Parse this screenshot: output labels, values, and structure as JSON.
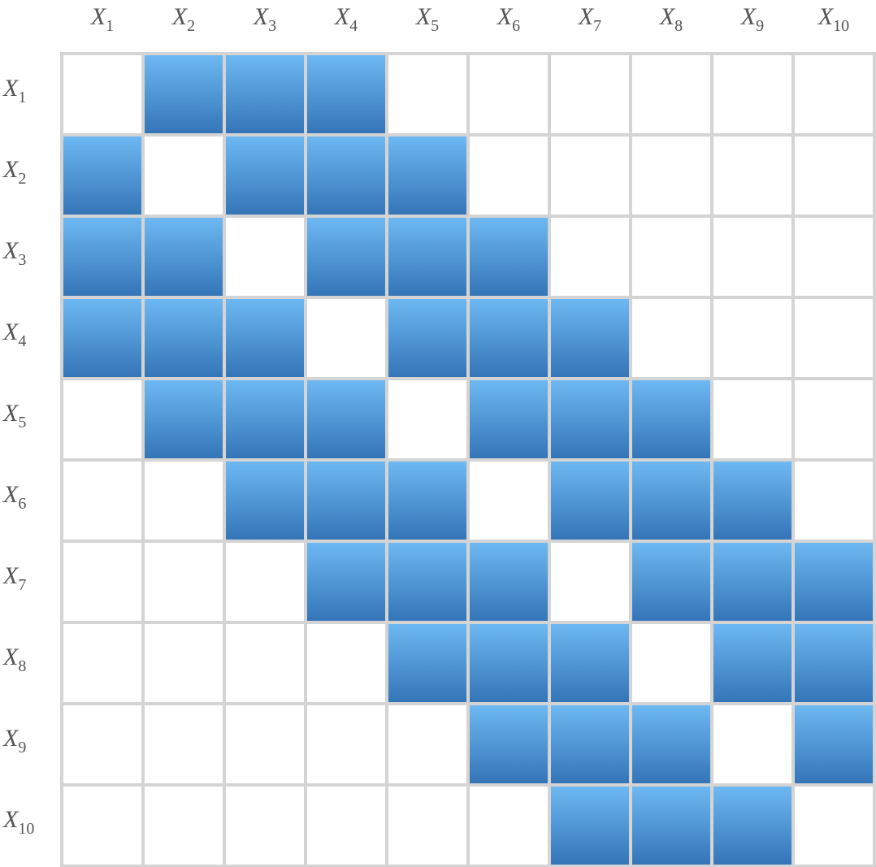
{
  "colors": {
    "filled_top": "#6db8f2",
    "filled_bottom": "#3475b8",
    "empty": "#ffffff",
    "grid_line": "#d4d4d4",
    "label": "#555555"
  },
  "labels": [
    {
      "base": "X",
      "sub": "1"
    },
    {
      "base": "X",
      "sub": "2"
    },
    {
      "base": "X",
      "sub": "3"
    },
    {
      "base": "X",
      "sub": "4"
    },
    {
      "base": "X",
      "sub": "5"
    },
    {
      "base": "X",
      "sub": "6"
    },
    {
      "base": "X",
      "sub": "7"
    },
    {
      "base": "X",
      "sub": "8"
    },
    {
      "base": "X",
      "sub": "9"
    },
    {
      "base": "X",
      "sub": "10"
    }
  ],
  "matrix": [
    [
      0,
      1,
      1,
      1,
      0,
      0,
      0,
      0,
      0,
      0
    ],
    [
      1,
      0,
      1,
      1,
      1,
      0,
      0,
      0,
      0,
      0
    ],
    [
      1,
      1,
      0,
      1,
      1,
      1,
      0,
      0,
      0,
      0
    ],
    [
      1,
      1,
      1,
      0,
      1,
      1,
      1,
      0,
      0,
      0
    ],
    [
      0,
      1,
      1,
      1,
      0,
      1,
      1,
      1,
      0,
      0
    ],
    [
      0,
      0,
      1,
      1,
      1,
      0,
      1,
      1,
      1,
      0
    ],
    [
      0,
      0,
      0,
      1,
      1,
      1,
      0,
      1,
      1,
      1
    ],
    [
      0,
      0,
      0,
      0,
      1,
      1,
      1,
      0,
      1,
      1
    ],
    [
      0,
      0,
      0,
      0,
      0,
      1,
      1,
      1,
      0,
      1
    ],
    [
      0,
      0,
      0,
      0,
      0,
      0,
      1,
      1,
      1,
      0
    ]
  ]
}
